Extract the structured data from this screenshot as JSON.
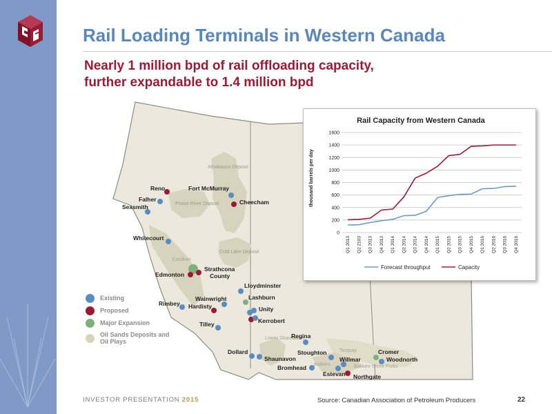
{
  "slide": {
    "title": "Rail Loading Terminals in Western Canada",
    "subtitle_line1": "Nearly 1 million bpd of rail offloading capacity,",
    "subtitle_line2": "further expandable to 1.4 million bpd",
    "footer_left": "INVESTOR PRESENTATION",
    "footer_year": "2015",
    "source": "Source: Canadian Association of Petroleum Producers",
    "page_number": "22"
  },
  "colors": {
    "existing": "#5b8cc0",
    "proposed": "#9a1b35",
    "major_expansion": "#7fb07c",
    "oil_sands": "#d7d3bd",
    "title": "#5b86b8",
    "subtitle": "#9a1b35",
    "forecast_line": "#6e99c5",
    "capacity_line": "#9a1b35"
  },
  "legend": [
    {
      "label": "Existing",
      "color": "#5b8cc0"
    },
    {
      "label": "Proposed",
      "color": "#9a1b35"
    },
    {
      "label": "Major Expansion",
      "color": "#7fb07c"
    },
    {
      "label": "Oil Sands Deposits and Oil Plays",
      "color": "#d7d3bd"
    }
  ],
  "map": {
    "deposits": {
      "athabasca": "Athabasca Deposit",
      "peace_river": "Peace River Deposit",
      "cold_lake": "Cold Lake Deposit"
    },
    "plays": {
      "cardium": "Cardium",
      "lower_shaunavon": "Lower Shaunavon",
      "torquay": "Torquay",
      "bakken": "Bakken",
      "bakken_three_forks": "Bakken-Three Forks"
    },
    "terminals": {
      "reno": "Reno",
      "fort_mcmurray": "Fort McMurray",
      "falher": "Falher",
      "sexsmith": "Sexsmith",
      "cheecham": "Cheecham",
      "whitecourt": "Whitecourt",
      "edmonton": "Edmonton",
      "strathcona": "Strathcona",
      "strathcona2": "County",
      "lloydminster": "Lloydminster",
      "lashburn": "Lashburn",
      "unity": "Unity",
      "kerrobert": "Kerrobert",
      "rimbey": "Rimbey",
      "wainwright": "Wainwright",
      "hardisty": "Hardisty",
      "tilley": "Tilley",
      "regina": "Regina",
      "dollard": "Dollard",
      "shaunavon": "Shaunavon",
      "stoughton": "Stoughton",
      "cromer": "Cromer",
      "woodnorth": "Woodnorth",
      "bromhead": "Bromhead",
      "willmar": "Willmar",
      "estevan": "Estevan",
      "northgate": "Northgate"
    }
  },
  "chart_data": {
    "type": "line",
    "title": "Rail Capacity from Western Canada",
    "ylabel": "thousand barrels per day",
    "xlabel": "",
    "ylim": [
      0,
      1600
    ],
    "yticks": [
      0,
      200,
      400,
      600,
      800,
      1000,
      1200,
      1400,
      1600
    ],
    "grid": true,
    "legend_position": "bottom",
    "categories": [
      "Q1 2013",
      "Q2 2103",
      "Q3 2013",
      "Q4 2013",
      "Q1 2014",
      "Q2 2014",
      "Q3 2014",
      "Q4 2014",
      "Q1 2015",
      "Q2 2015",
      "Q3 2015",
      "Q4 2015",
      "Q1 2016",
      "Q2 2016",
      "Q3 2016",
      "Q4 2016"
    ],
    "series": [
      {
        "name": "Forecast throughput",
        "color": "#6e99c5",
        "values": [
          120,
          125,
          160,
          190,
          210,
          270,
          275,
          340,
          560,
          590,
          610,
          615,
          700,
          705,
          735,
          740
        ]
      },
      {
        "name": "Capacity",
        "color": "#9a1b35",
        "values": [
          205,
          210,
          230,
          360,
          375,
          570,
          870,
          950,
          1060,
          1230,
          1250,
          1380,
          1385,
          1400,
          1400,
          1400
        ]
      }
    ]
  }
}
